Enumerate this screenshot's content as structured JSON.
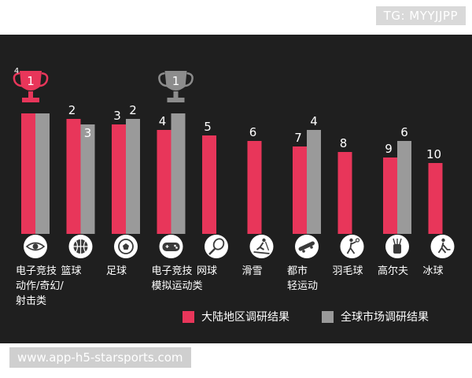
{
  "watermark_top": "TG: MYYJJPP",
  "watermark_bottom": "www.app-h5-starsports.com",
  "colors": {
    "background": "#1f1f1f",
    "mainland": "#e8365a",
    "global": "#9a9a9a",
    "trophy_mainland": "#e8365a",
    "trophy_global": "#8c8c8c"
  },
  "chart_data": {
    "type": "bar",
    "title": "",
    "xlabel": "",
    "ylabel": "",
    "value_meaning": "rank (1 = highest)",
    "categories": [
      [
        "电子竞技",
        "动作/奇幻/",
        "射击类"
      ],
      [
        "篮球"
      ],
      [
        "足球"
      ],
      [
        "电子竞技",
        "模拟运动类"
      ],
      [
        "网球"
      ],
      [
        "滑雪"
      ],
      [
        "都市",
        "轻运动"
      ],
      [
        "羽毛球"
      ],
      [
        "高尔夫"
      ],
      [
        "冰球"
      ]
    ],
    "category_icons": [
      "eye-icon",
      "basketball-icon",
      "soccer-ball-icon",
      "gamepad-icon",
      "tennis-racket-icon",
      "skier-icon",
      "skateboard-icon",
      "badminton-player-icon",
      "golf-bag-icon",
      "hockey-player-icon"
    ],
    "series": [
      {
        "name": "大陆地区调研结果",
        "values": [
          1,
          2,
          3,
          4,
          5,
          6,
          7,
          8,
          9,
          10
        ]
      },
      {
        "name": "全球市场调研结果",
        "values": [
          1,
          3,
          2,
          1,
          null,
          null,
          4,
          null,
          6,
          null
        ]
      }
    ],
    "series_value_labels": [
      [
        "1",
        "2",
        "3",
        "4",
        "5",
        "6",
        "7",
        "8",
        "9",
        "10"
      ],
      [
        "",
        "3",
        "2",
        "1",
        "",
        "",
        "4",
        "",
        "6",
        ""
      ]
    ],
    "trophy_labels": [
      {
        "category_index": 0,
        "series_index": 0,
        "label": "1",
        "corner_label": "4"
      },
      {
        "category_index": 3,
        "series_index": 1,
        "label": "1",
        "corner_label": ""
      }
    ],
    "legend_position": "bottom-right",
    "grid": false
  }
}
